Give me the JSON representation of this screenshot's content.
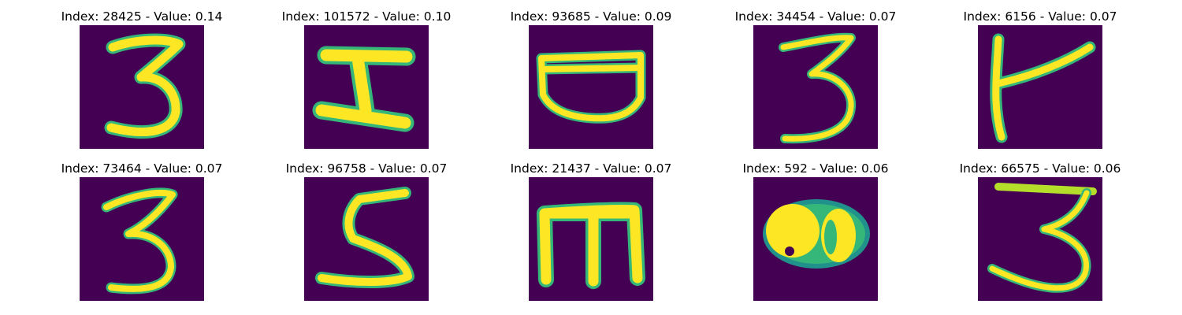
{
  "figure": {
    "background": "#ffffff",
    "image_background": "#440154",
    "stroke_color": "#fde725",
    "edge_color": "#35b779",
    "panels": [
      {
        "title": "Index: 28425 - Value: 0.14",
        "glyph": "digit-3-image"
      },
      {
        "title": "Index: 101572 - Value: 0.10",
        "glyph": "letter-i-image"
      },
      {
        "title": "Index: 93685 - Value: 0.09",
        "glyph": "bowl-shape-image"
      },
      {
        "title": "Index: 34454 - Value: 0.07",
        "glyph": "digit-3-image"
      },
      {
        "title": "Index: 6156 - Value: 0.07",
        "glyph": "letter-k-like-image"
      },
      {
        "title": "Index: 73464 - Value: 0.07",
        "glyph": "digit-3-image"
      },
      {
        "title": "Index: 96758 - Value: 0.07",
        "glyph": "digit-5-image"
      },
      {
        "title": "Index: 21437 - Value: 0.07",
        "glyph": "letter-m-image"
      },
      {
        "title": "Index: 592 - Value: 0.06",
        "glyph": "blob-shape-image"
      },
      {
        "title": "Index: 66575 - Value: 0.06",
        "glyph": "digit-3-image"
      }
    ]
  }
}
